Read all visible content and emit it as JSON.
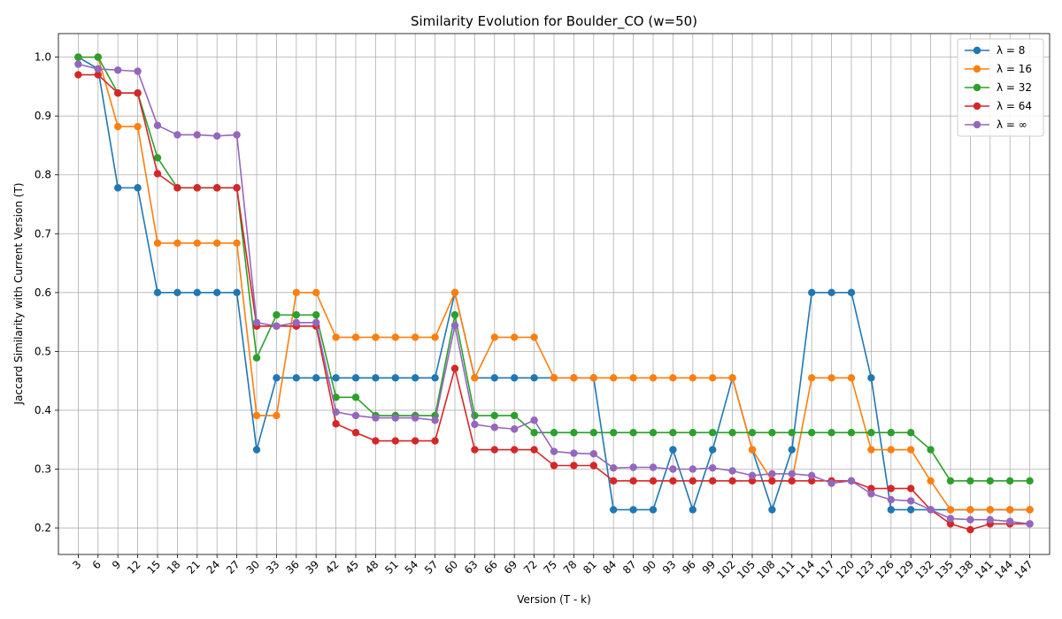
{
  "chart_data": {
    "type": "line",
    "title": "Similarity Evolution for Boulder_CO (w=50)",
    "xlabel": "Version (T - k)",
    "ylabel": "Jaccard Similarity with Current Version (T)",
    "x": [
      3,
      6,
      9,
      12,
      15,
      18,
      21,
      24,
      27,
      30,
      33,
      36,
      39,
      42,
      45,
      48,
      51,
      54,
      57,
      60,
      63,
      66,
      69,
      72,
      75,
      78,
      81,
      84,
      87,
      90,
      93,
      96,
      99,
      102,
      105,
      108,
      111,
      114,
      117,
      120,
      123,
      126,
      129,
      132,
      135,
      138,
      141,
      144,
      147
    ],
    "ylim": [
      0.155,
      1.04
    ],
    "yticks": [
      0.2,
      0.3,
      0.4,
      0.5,
      0.6,
      0.7,
      0.8,
      0.9,
      1.0
    ],
    "ytick_labels": [
      "0.2",
      "0.3",
      "0.4",
      "0.5",
      "0.6",
      "0.7",
      "0.8",
      "0.9",
      "1.0"
    ],
    "grid": true,
    "legend_position": "top-right",
    "series": [
      {
        "name": "λ = 8",
        "color": "#1f77b4",
        "values": [
          1.0,
          0.98,
          0.778,
          0.778,
          0.6,
          0.6,
          0.6,
          0.6,
          0.6,
          0.333,
          0.455,
          0.455,
          0.455,
          0.455,
          0.455,
          0.455,
          0.455,
          0.455,
          0.455,
          0.6,
          0.455,
          0.455,
          0.455,
          0.455,
          0.455,
          0.455,
          0.455,
          0.231,
          0.231,
          0.231,
          0.333,
          0.231,
          0.333,
          0.455,
          0.333,
          0.231,
          0.333,
          0.6,
          0.6,
          0.6,
          0.455,
          0.231,
          0.231,
          0.231,
          0.231,
          0.231,
          0.231,
          0.231,
          0.231
        ]
      },
      {
        "name": "λ = 16",
        "color": "#ff7f0e",
        "values": [
          1.0,
          1.0,
          0.882,
          0.882,
          0.684,
          0.684,
          0.684,
          0.684,
          0.684,
          0.391,
          0.391,
          0.6,
          0.6,
          0.524,
          0.524,
          0.524,
          0.524,
          0.524,
          0.524,
          0.6,
          0.455,
          0.524,
          0.524,
          0.524,
          0.455,
          0.455,
          0.455,
          0.455,
          0.455,
          0.455,
          0.455,
          0.455,
          0.455,
          0.455,
          0.333,
          0.28,
          0.28,
          0.455,
          0.455,
          0.455,
          0.333,
          0.333,
          0.333,
          0.28,
          0.231,
          0.231,
          0.231,
          0.231,
          0.231
        ]
      },
      {
        "name": "λ = 32",
        "color": "#2ca02c",
        "values": [
          1.0,
          1.0,
          0.939,
          0.939,
          0.829,
          0.778,
          0.778,
          0.778,
          0.778,
          0.489,
          0.562,
          0.562,
          0.562,
          0.422,
          0.422,
          0.391,
          0.391,
          0.391,
          0.391,
          0.562,
          0.391,
          0.391,
          0.391,
          0.362,
          0.362,
          0.362,
          0.362,
          0.362,
          0.362,
          0.362,
          0.362,
          0.362,
          0.362,
          0.362,
          0.362,
          0.362,
          0.362,
          0.362,
          0.362,
          0.362,
          0.362,
          0.362,
          0.362,
          0.333,
          0.28,
          0.28,
          0.28,
          0.28,
          0.28
        ]
      },
      {
        "name": "λ = 64",
        "color": "#d62728",
        "values": [
          0.97,
          0.97,
          0.939,
          0.939,
          0.802,
          0.778,
          0.778,
          0.778,
          0.778,
          0.543,
          0.543,
          0.543,
          0.543,
          0.377,
          0.362,
          0.348,
          0.348,
          0.348,
          0.348,
          0.471,
          0.333,
          0.333,
          0.333,
          0.333,
          0.306,
          0.306,
          0.306,
          0.28,
          0.28,
          0.28,
          0.28,
          0.28,
          0.28,
          0.28,
          0.28,
          0.28,
          0.28,
          0.28,
          0.28,
          0.28,
          0.267,
          0.267,
          0.267,
          0.231,
          0.207,
          0.197,
          0.207,
          0.207,
          0.207
        ]
      },
      {
        "name": "λ = ∞",
        "color": "#9467bd",
        "values": [
          0.988,
          0.98,
          0.978,
          0.976,
          0.884,
          0.868,
          0.868,
          0.866,
          0.868,
          0.549,
          0.543,
          0.549,
          0.549,
          0.397,
          0.391,
          0.387,
          0.387,
          0.387,
          0.383,
          0.544,
          0.376,
          0.371,
          0.368,
          0.383,
          0.33,
          0.327,
          0.326,
          0.302,
          0.303,
          0.303,
          0.3,
          0.3,
          0.302,
          0.297,
          0.289,
          0.292,
          0.292,
          0.289,
          0.276,
          0.28,
          0.258,
          0.248,
          0.246,
          0.231,
          0.216,
          0.214,
          0.214,
          0.211,
          0.207
        ]
      }
    ]
  }
}
